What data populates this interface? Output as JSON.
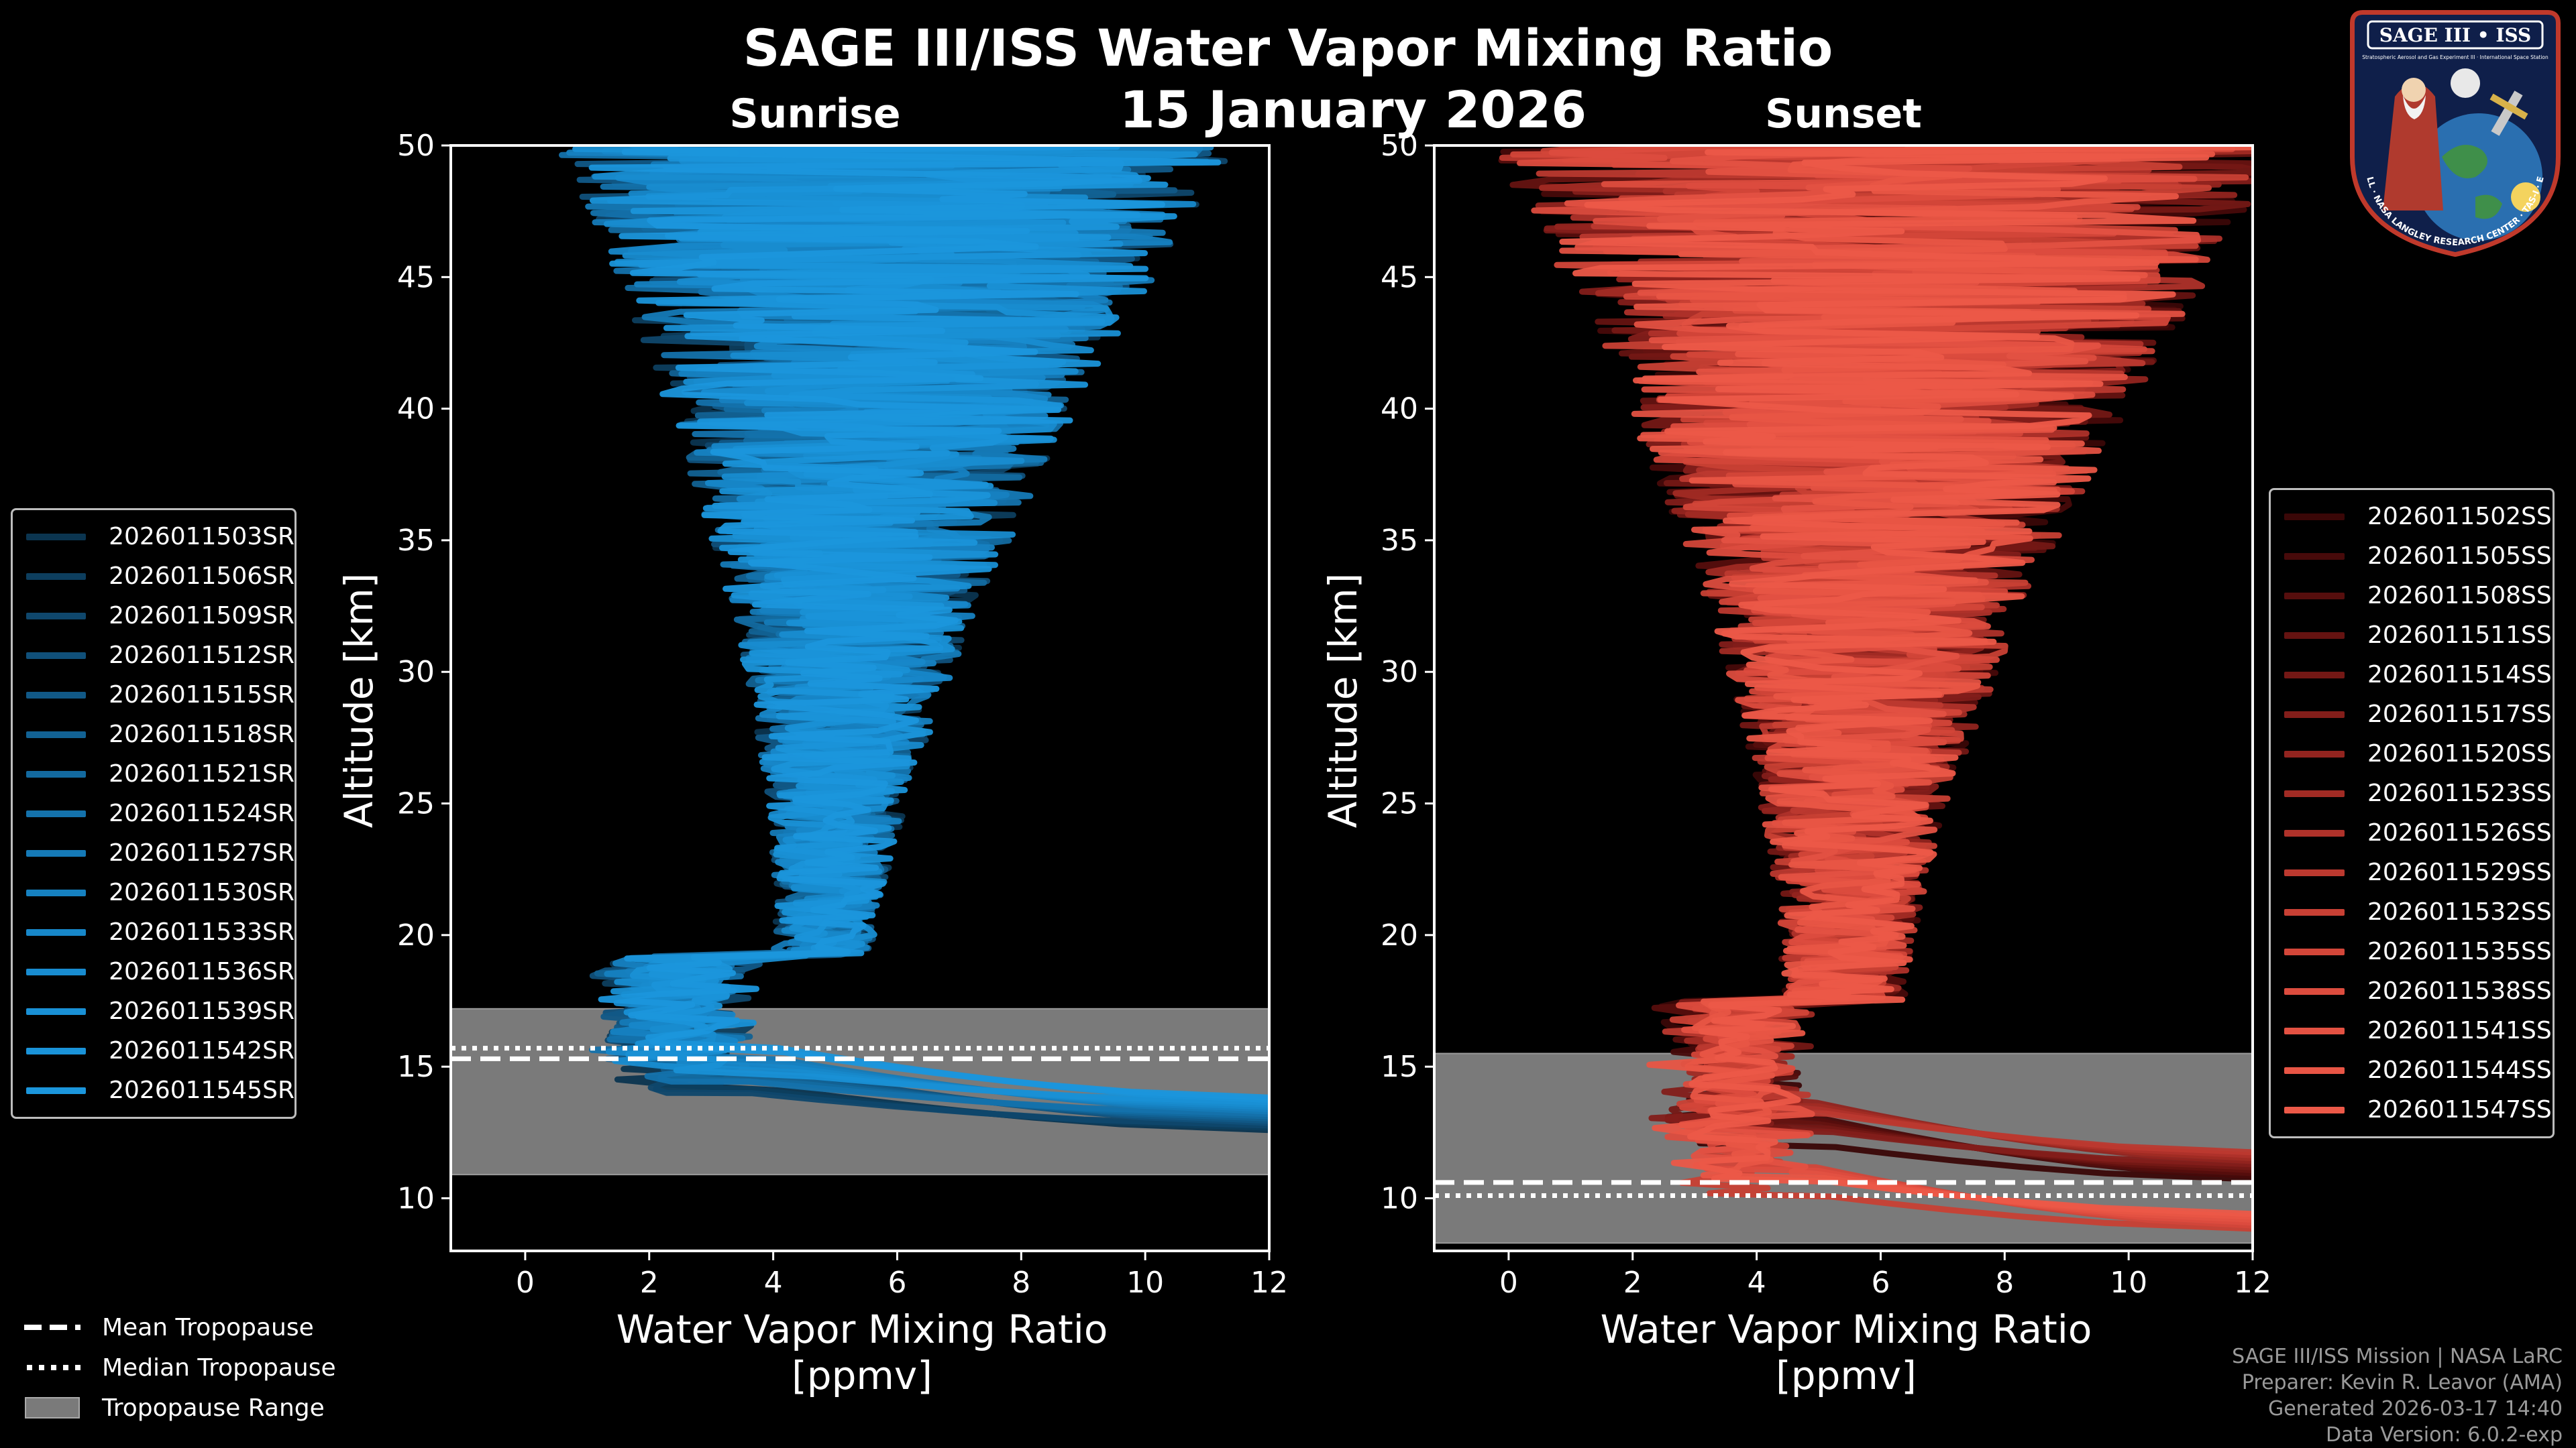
{
  "title": "SAGE III/ISS Water Vapor Mixing Ratio",
  "date": "15 January 2026",
  "colors": {
    "background": "#000000",
    "sunrise": "#1b8fd3",
    "sunset": "#ea5546",
    "tropopause_band": "#7a7a7a",
    "axis": "#ffffff"
  },
  "chart_data": [
    {
      "type": "line",
      "panel": "Sunrise",
      "title": "Sunrise",
      "xlabel": "Water Vapor Mixing Ratio [ppmv]",
      "ylabel": "Altitude [km]",
      "xlim": [
        -1.2,
        12
      ],
      "ylim": [
        8,
        50
      ],
      "xticks": [
        0,
        2,
        4,
        6,
        8,
        10,
        12
      ],
      "yticks": [
        10,
        15,
        20,
        25,
        30,
        35,
        40,
        45,
        50
      ],
      "tropopause": {
        "mean": 15.3,
        "median": 15.7,
        "min": 10.9,
        "max": 17.2
      },
      "profile_shape": {
        "min_alt": 12.0,
        "tropopause_x": 2.4,
        "mid_x": 4.8,
        "upper_x": 6.0,
        "jitter_mid": 0.8,
        "jitter_top": 5.5
      },
      "series": [
        {
          "name": "2026011503SR",
          "color": "#0b3550"
        },
        {
          "name": "2026011506SR",
          "color": "#0d3e5e"
        },
        {
          "name": "2026011509SR",
          "color": "#0f476c"
        },
        {
          "name": "2026011512SR",
          "color": "#10507a"
        },
        {
          "name": "2026011515SR",
          "color": "#115987"
        },
        {
          "name": "2026011518SR",
          "color": "#126294"
        },
        {
          "name": "2026011521SR",
          "color": "#136aa0"
        },
        {
          "name": "2026011524SR",
          "color": "#1472ac"
        },
        {
          "name": "2026011527SR",
          "color": "#157ab7"
        },
        {
          "name": "2026011530SR",
          "color": "#1681c1"
        },
        {
          "name": "2026011533SR",
          "color": "#1787c9"
        },
        {
          "name": "2026011536SR",
          "color": "#188cd0"
        },
        {
          "name": "2026011539SR",
          "color": "#1990d5"
        },
        {
          "name": "2026011542SR",
          "color": "#1a93d9"
        },
        {
          "name": "2026011545SR",
          "color": "#1b96dc"
        }
      ]
    },
    {
      "type": "line",
      "panel": "Sunset",
      "title": "Sunset",
      "xlabel": "Water Vapor Mixing Ratio [ppmv]",
      "ylabel": "Altitude [km]",
      "xlim": [
        -1.2,
        12
      ],
      "ylim": [
        8,
        50
      ],
      "xticks": [
        0,
        2,
        4,
        6,
        8,
        10,
        12
      ],
      "yticks": [
        10,
        15,
        20,
        25,
        30,
        35,
        40,
        45,
        50
      ],
      "tropopause": {
        "mean": 10.6,
        "median": 10.1,
        "min": 8.3,
        "max": 15.5
      },
      "profile_shape": {
        "min_alt": 8.8,
        "tropopause_x": 3.6,
        "mid_x": 5.4,
        "upper_x": 6.2,
        "jitter_mid": 1.0,
        "jitter_top": 6.5
      },
      "series": [
        {
          "name": "2026011502SS",
          "color": "#3a0707"
        },
        {
          "name": "2026011505SS",
          "color": "#470a0a"
        },
        {
          "name": "2026011508SS",
          "color": "#560e0d"
        },
        {
          "name": "2026011511SS",
          "color": "#651311"
        },
        {
          "name": "2026011514SS",
          "color": "#741815"
        },
        {
          "name": "2026011517SS",
          "color": "#831e1a"
        },
        {
          "name": "2026011520SS",
          "color": "#92241f"
        },
        {
          "name": "2026011523SS",
          "color": "#a12b24"
        },
        {
          "name": "2026011526SS",
          "color": "#af322a"
        },
        {
          "name": "2026011529SS",
          "color": "#bc392f"
        },
        {
          "name": "2026011532SS",
          "color": "#c84034"
        },
        {
          "name": "2026011535SS",
          "color": "#d34639"
        },
        {
          "name": "2026011538SS",
          "color": "#dc4c3e"
        },
        {
          "name": "2026011541SS",
          "color": "#e35142"
        },
        {
          "name": "2026011544SS",
          "color": "#e85545"
        },
        {
          "name": "2026011547SS",
          "color": "#ec5948"
        }
      ]
    }
  ],
  "tropopause_legend": {
    "mean": "Mean Tropopause",
    "median": "Median Tropopause",
    "range": "Tropopause Range"
  },
  "credits": {
    "line1": "SAGE III/ISS Mission | NASA LaRC",
    "line2": "Preparer: Kevin R. Leavor (AMA)",
    "line3": "Generated 2026-03-17 14:40",
    "line4": "Data Version: 6.0.2-exp"
  },
  "logo": {
    "title": "SAGE III • ISS",
    "subtitle": "Stratospheric Aerosol and Gas Experiment III · International Space Station",
    "ring": "BALL · NASA LANGLEY RESEARCH CENTER · TAS-I · ESA"
  }
}
